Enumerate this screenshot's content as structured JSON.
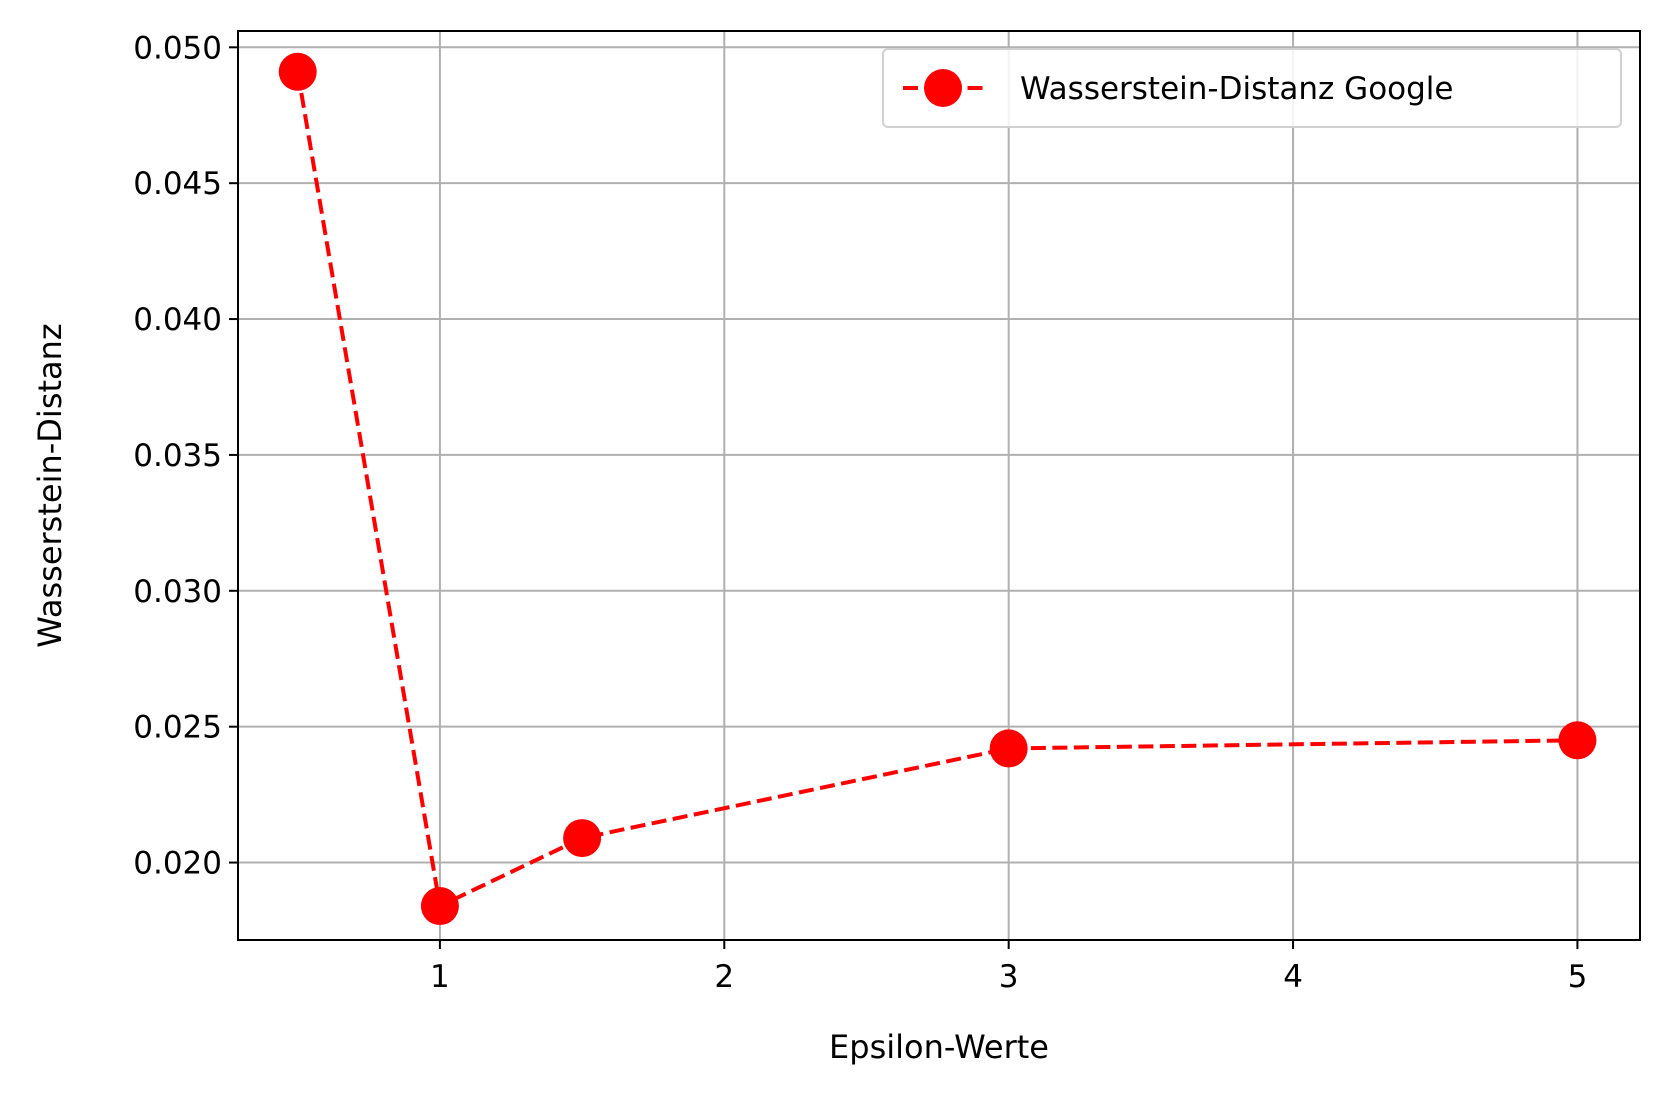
{
  "chart_data": {
    "type": "line",
    "xlabel": "Epsilon-Werte",
    "ylabel": "Wasserstein-Distanz",
    "xlim": [
      0.29,
      5.22
    ],
    "ylim": [
      0.01715,
      0.0506
    ],
    "xticks": [
      1,
      2,
      3,
      4,
      5
    ],
    "xtick_labels": [
      "1",
      "2",
      "3",
      "4",
      "5"
    ],
    "yticks": [
      0.02,
      0.025,
      0.03,
      0.035,
      0.04,
      0.045,
      0.05
    ],
    "ytick_labels": [
      "0.020",
      "0.025",
      "0.030",
      "0.035",
      "0.040",
      "0.045",
      "0.050"
    ],
    "grid": true,
    "legend_position": "top-right",
    "series": [
      {
        "name": "Wasserstein-Distanz Google",
        "color": "#ff0000",
        "line_style": "dashed",
        "marker": "circle",
        "x": [
          0.5,
          1,
          1.5,
          3,
          5
        ],
        "y": [
          0.0491,
          0.0184,
          0.0209,
          0.0242,
          0.0245
        ]
      }
    ]
  }
}
